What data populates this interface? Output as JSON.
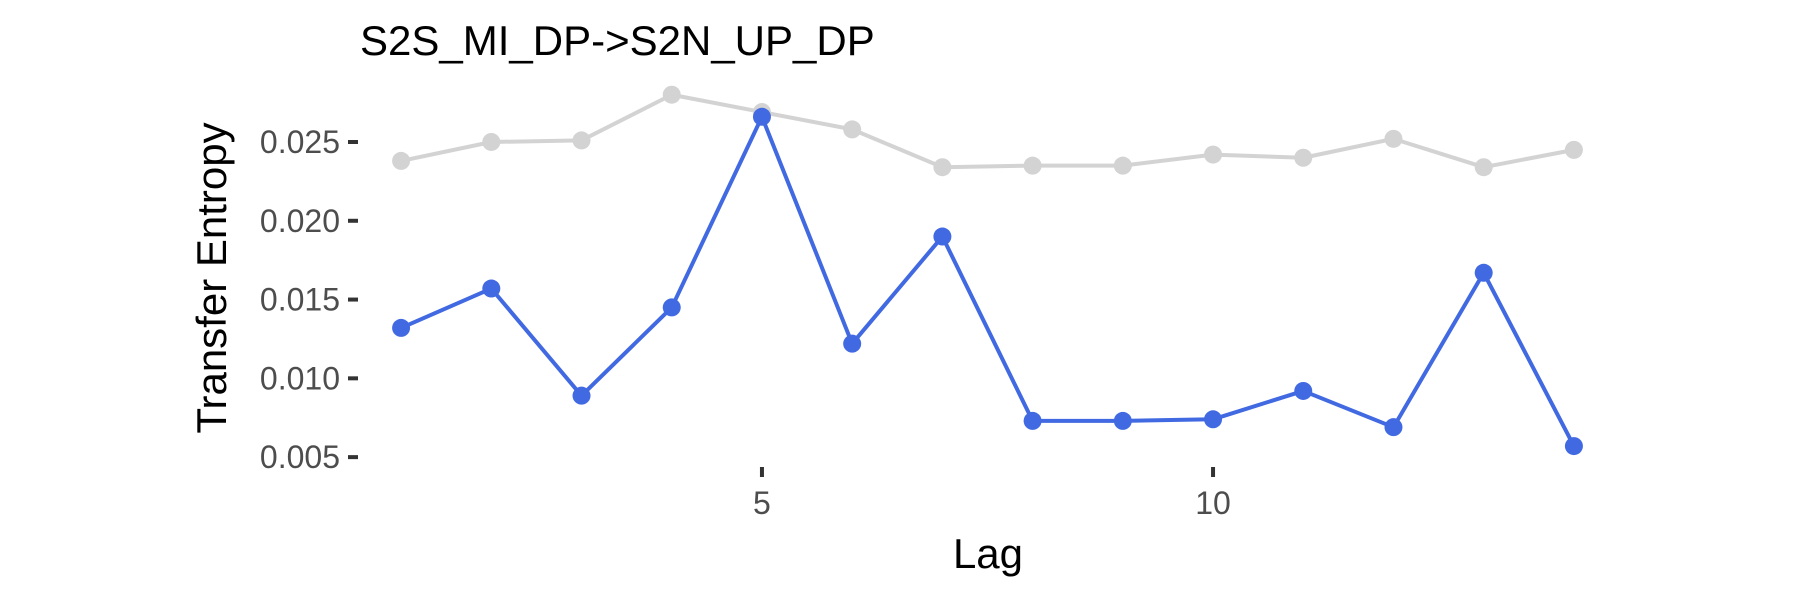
{
  "chart_data": {
    "type": "line",
    "title": "S2S_MI_DP->S2N_UP_DP",
    "xlabel": "Lag",
    "ylabel": "Transfer Entropy",
    "x": [
      1,
      2,
      3,
      4,
      5,
      6,
      7,
      8,
      9,
      10,
      11,
      12,
      13,
      14
    ],
    "xlim": [
      0.6,
      14.4
    ],
    "ylim": [
      0.0045,
      0.0283
    ],
    "x_ticks": [
      5,
      10
    ],
    "y_ticks": [
      0.005,
      0.01,
      0.015,
      0.02,
      0.025
    ],
    "x_tick_labels": [
      "5",
      "10"
    ],
    "y_tick_labels": [
      "0.005",
      "0.010",
      "0.015",
      "0.020",
      "0.025"
    ],
    "grid": false,
    "series": [
      {
        "color": "#d3d3d3",
        "values": [
          0.0238,
          0.025,
          0.0251,
          0.028,
          0.0269,
          0.0258,
          0.0234,
          0.0235,
          0.0235,
          0.0242,
          0.024,
          0.0252,
          0.0234,
          0.0245
        ]
      },
      {
        "color": "#4169e1",
        "values": [
          0.0132,
          0.0157,
          0.0089,
          0.0145,
          0.0266,
          0.0122,
          0.019,
          0.0073,
          0.0073,
          0.0074,
          0.0092,
          0.0069,
          0.0167,
          0.0057
        ]
      }
    ]
  }
}
